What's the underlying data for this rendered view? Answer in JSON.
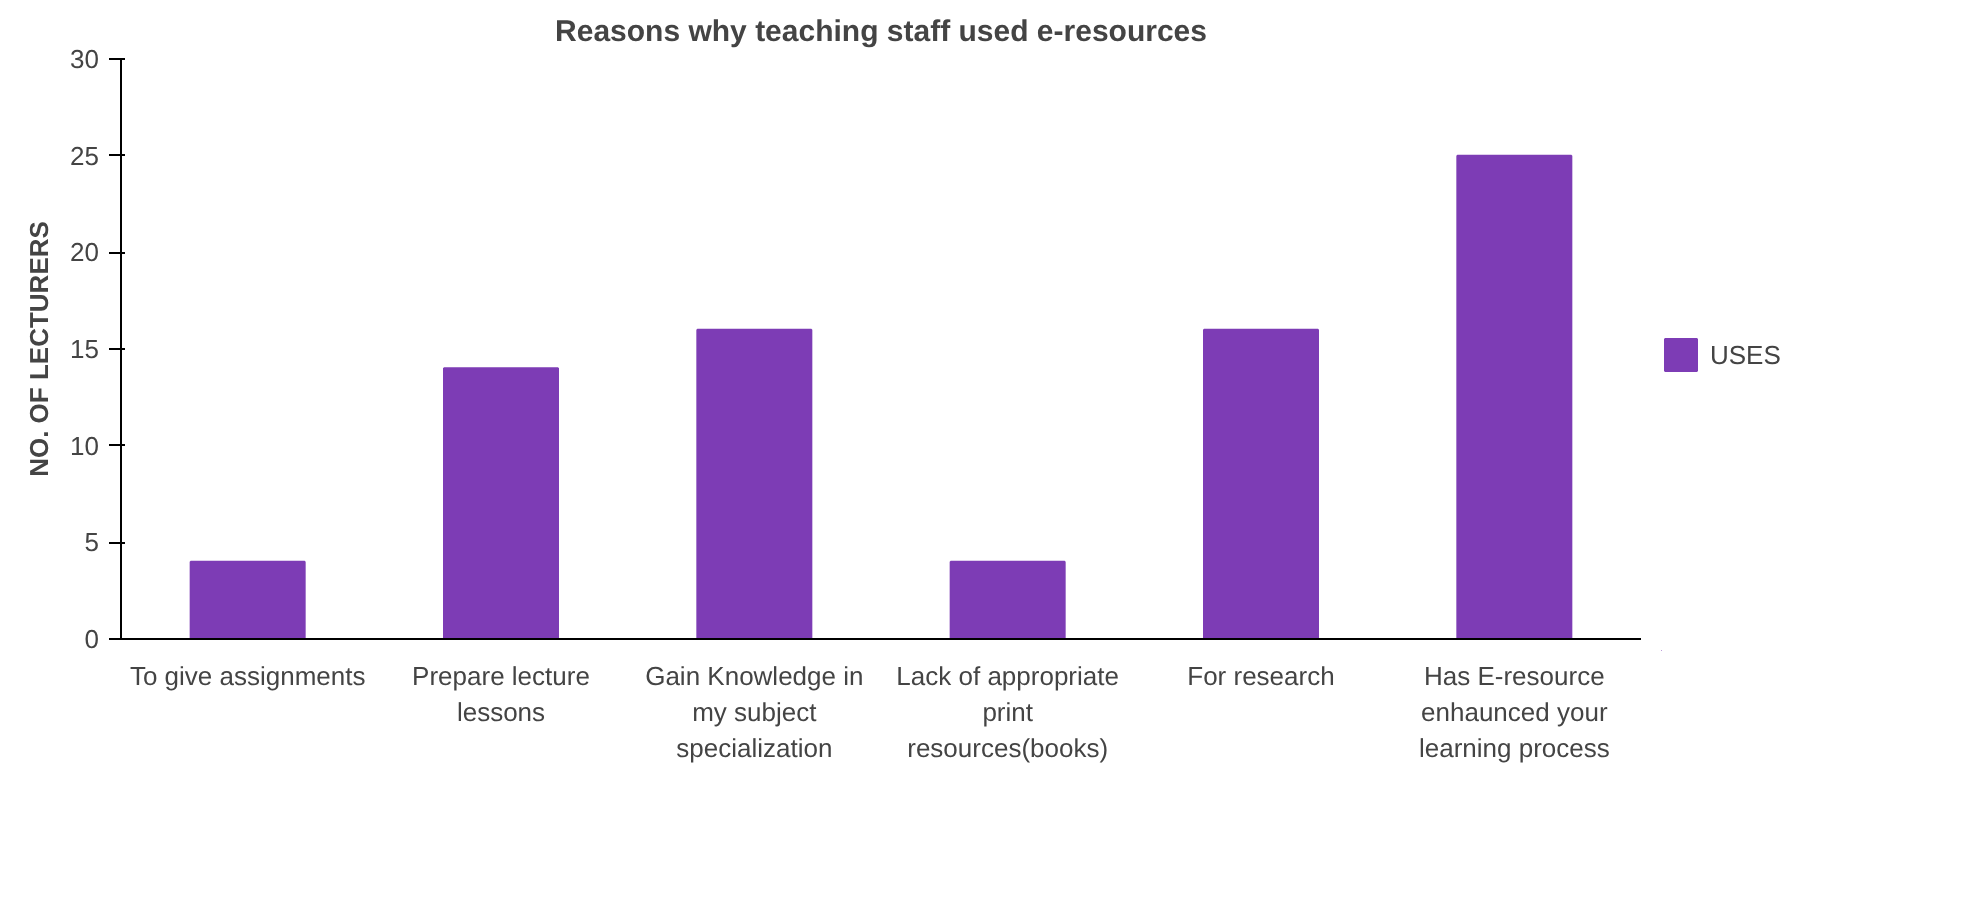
{
  "chart_data": {
    "type": "bar",
    "title": "Reasons why teaching staff used e-resources",
    "ylabel": "NO. OF LECTURERS",
    "categories": [
      "To give assignments",
      "Prepare lecture lessons",
      "Gain Knowledge in my subject specialization",
      "Lack of appropriate print resources(books)",
      "For research",
      "Has E-resource enhaunced your learning process"
    ],
    "series": [
      {
        "name": "USES",
        "color": "#7d3cb5",
        "values": [
          4,
          14,
          16,
          4,
          16,
          25
        ]
      }
    ],
    "ylim": [
      0,
      30
    ],
    "yticks": [
      0,
      5,
      10,
      15,
      20,
      25,
      30
    ],
    "grid": false,
    "legend": "right"
  }
}
